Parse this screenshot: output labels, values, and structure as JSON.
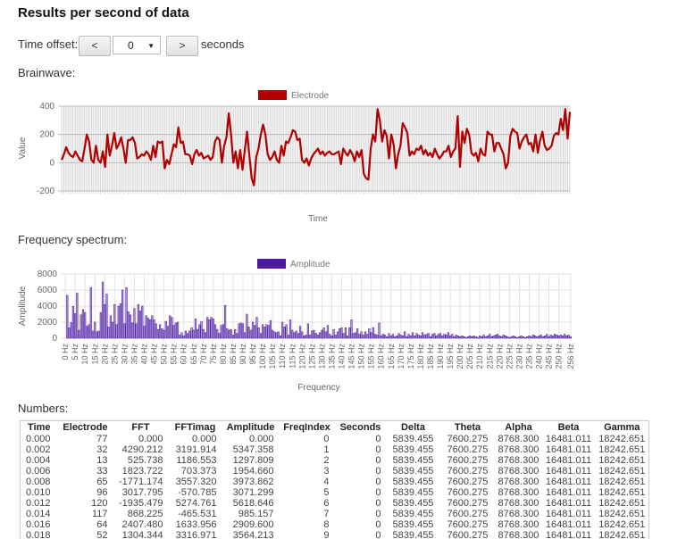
{
  "title": "Results per second of data",
  "controls": {
    "label": "Time offset:",
    "prev_label": "<",
    "offset_value": "0",
    "next_label": ">",
    "unit": "seconds"
  },
  "brainwave": {
    "heading": "Brainwave:",
    "chart_data": {
      "type": "line",
      "legend": "Electrode",
      "color": "#b00000",
      "xlabel": "Time",
      "ylabel": "Value",
      "ylim": [
        -200,
        400
      ],
      "yticks": [
        "400",
        "200",
        "0",
        "-200"
      ],
      "grid": true,
      "legend_position": "top",
      "values": [
        20,
        60,
        110,
        70,
        50,
        40,
        80,
        50,
        20,
        10,
        100,
        200,
        150,
        20,
        0,
        120,
        20,
        0,
        80,
        -30,
        200,
        50,
        120,
        210,
        100,
        130,
        180,
        100,
        0,
        160,
        160,
        180,
        140,
        30,
        40,
        60,
        50,
        80,
        60,
        20,
        120,
        40,
        150,
        140,
        150,
        -40,
        20,
        -10,
        60,
        130,
        110,
        250,
        140,
        150,
        60,
        60,
        50,
        -10,
        60,
        90,
        50,
        70,
        30,
        40,
        50,
        20,
        40,
        150,
        180,
        160,
        0,
        120,
        180,
        350,
        200,
        0,
        80,
        -40,
        90,
        -50,
        90,
        220,
        50,
        -110,
        -160,
        40,
        100,
        200,
        270,
        200,
        60,
        20,
        40,
        80,
        20,
        0,
        120,
        50,
        150,
        140,
        180,
        230,
        220,
        160,
        170,
        20,
        0,
        30,
        -20,
        30,
        60,
        80,
        100,
        60,
        80,
        50,
        70,
        80,
        60,
        60,
        70,
        80,
        -10,
        100,
        70,
        50,
        90,
        60,
        10,
        80,
        40,
        90,
        -80,
        -110,
        -120,
        100,
        200,
        150,
        380,
        300,
        150,
        230,
        190,
        30,
        200,
        130,
        -40,
        60,
        120,
        280,
        250,
        210,
        50,
        80,
        60,
        100,
        90,
        120,
        60,
        90,
        50,
        70,
        40,
        100,
        60,
        30,
        50,
        80,
        80,
        120,
        40,
        80,
        100,
        330,
        -30,
        220,
        140,
        240,
        200,
        70,
        50,
        70,
        10,
        100,
        60,
        50,
        220,
        200,
        200,
        80,
        140,
        140,
        100,
        60,
        -40,
        0,
        190,
        240,
        220,
        210,
        100,
        150,
        180,
        200,
        130,
        140,
        80,
        200,
        70,
        160,
        220,
        120,
        90,
        100,
        120,
        190,
        210,
        200,
        310,
        230,
        380,
        170,
        360
      ]
    }
  },
  "spectrum": {
    "heading": "Frequency spectrum:",
    "chart_data": {
      "type": "bar",
      "legend": "Amplitude",
      "color": "#4b1a9e",
      "xlabel": "Frequency",
      "ylabel": "Amplitude",
      "ylim": [
        0,
        8000
      ],
      "yticks": [
        "8000",
        "6000",
        "4000",
        "2000",
        "0"
      ],
      "grid": true,
      "legend_position": "top",
      "xticks": [
        "0 Hz",
        "5 Hz",
        "10 Hz",
        "15 Hz",
        "20 Hz",
        "25 Hz",
        "30 Hz",
        "35 Hz",
        "40 Hz",
        "45 Hz",
        "50 Hz",
        "55 Hz",
        "60 Hz",
        "65 Hz",
        "70 Hz",
        "75 Hz",
        "80 Hz",
        "85 Hz",
        "90 Hz",
        "95 Hz",
        "100 Hz",
        "105 Hz",
        "110 Hz",
        "115 Hz",
        "120 Hz",
        "125 Hz",
        "130 Hz",
        "135 Hz",
        "140 Hz",
        "145 Hz",
        "150 Hz",
        "155 Hz",
        "160 Hz",
        "165 Hz",
        "170 Hz",
        "175 Hz",
        "180 Hz",
        "185 Hz",
        "190 Hz",
        "195 Hz",
        "200 Hz",
        "205 Hz",
        "210 Hz",
        "215 Hz",
        "220 Hz",
        "225 Hz",
        "230 Hz",
        "235 Hz",
        "240 Hz",
        "245 Hz",
        "250 Hz",
        "256 Hz"
      ],
      "values": [
        0,
        5347,
        1298,
        1955,
        3974,
        3071,
        5619,
        985,
        2910,
        3564,
        3200,
        1500,
        1700,
        6300,
        900,
        2000,
        800,
        900,
        3200,
        7000,
        4200,
        5500,
        1400,
        2800,
        2000,
        4200,
        1700,
        4000,
        4300,
        6000,
        1800,
        6300,
        3300,
        2900,
        1900,
        3700,
        1800,
        4200,
        3400,
        4000,
        1500,
        2800,
        2500,
        2300,
        2800,
        2300,
        1800,
        1100,
        1700,
        1200,
        1000,
        2100,
        1500,
        2800,
        2600,
        1600,
        1900,
        2000,
        400,
        700,
        300,
        900,
        600,
        900,
        1300,
        1000,
        2400,
        1100,
        1700,
        2100,
        1100,
        700,
        2600,
        2300,
        2600,
        2400,
        1700,
        1100,
        600,
        1600,
        1700,
        4100,
        1200,
        1000,
        1100,
        400,
        1100,
        600,
        1800,
        1900,
        1800,
        700,
        3000,
        1400,
        1000,
        2000,
        1600,
        2600,
        1300,
        600,
        1700,
        1400,
        1700,
        1600,
        2200,
        1000,
        800,
        700,
        800,
        300,
        2000,
        1400,
        1700,
        400,
        2300,
        1000,
        700,
        900,
        600,
        1500,
        800,
        300,
        400,
        1800,
        400,
        900,
        1000,
        600,
        400,
        700,
        1000,
        1300,
        800,
        1600,
        500,
        300,
        1100,
        400,
        800,
        1200,
        1300,
        600,
        1300,
        300,
        1300,
        2300,
        600,
        700,
        1200,
        500,
        800,
        400,
        800,
        500,
        1200,
        700,
        1300,
        500,
        400,
        1900,
        300,
        500,
        400,
        200,
        600,
        300,
        500,
        200,
        300,
        600,
        400,
        300,
        800,
        200,
        500,
        300,
        700,
        300,
        600,
        400,
        300,
        700,
        400,
        500,
        600,
        200,
        500,
        600,
        300,
        500,
        600,
        300,
        500,
        400,
        700,
        300,
        500,
        200,
        400,
        300,
        200,
        300,
        200,
        100,
        200,
        300,
        200,
        300,
        200,
        100,
        300,
        200,
        400,
        200,
        300,
        500,
        200,
        300,
        400,
        500,
        300,
        200,
        400,
        300,
        200,
        100,
        200,
        300,
        200,
        100,
        200,
        300,
        200,
        100,
        200,
        300,
        200,
        400,
        300,
        200,
        300,
        400,
        200,
        300,
        500,
        200,
        400,
        300,
        500,
        400,
        300,
        400,
        300,
        500,
        300,
        400,
        200
      ]
    }
  },
  "numbers": {
    "heading": "Numbers:",
    "columns": [
      "Time",
      "Electrode",
      "FFT",
      "FFTimag",
      "Amplitude",
      "FreqIndex",
      "Seconds",
      "Delta",
      "Theta",
      "Alpha",
      "Beta",
      "Gamma"
    ],
    "rows": [
      [
        "0.000",
        "77",
        "0.000",
        "0.000",
        "0.000",
        "0",
        "0",
        "5839.455",
        "7600.275",
        "8768.300",
        "16481.011",
        "18242.651"
      ],
      [
        "0.002",
        "32",
        "4290.212",
        "3191.914",
        "5347.358",
        "1",
        "0",
        "5839.455",
        "7600.275",
        "8768.300",
        "16481.011",
        "18242.651"
      ],
      [
        "0.004",
        "13",
        "525.738",
        "1186.553",
        "1297.809",
        "2",
        "0",
        "5839.455",
        "7600.275",
        "8768.300",
        "16481.011",
        "18242.651"
      ],
      [
        "0.006",
        "33",
        "1823.722",
        "703.373",
        "1954.660",
        "3",
        "0",
        "5839.455",
        "7600.275",
        "8768.300",
        "16481.011",
        "18242.651"
      ],
      [
        "0.008",
        "65",
        "-1771.174",
        "3557.320",
        "3973.862",
        "4",
        "0",
        "5839.455",
        "7600.275",
        "8768.300",
        "16481.011",
        "18242.651"
      ],
      [
        "0.010",
        "96",
        "3017.795",
        "-570.785",
        "3071.299",
        "5",
        "0",
        "5839.455",
        "7600.275",
        "8768.300",
        "16481.011",
        "18242.651"
      ],
      [
        "0.012",
        "120",
        "-1935.479",
        "5274.761",
        "5618.646",
        "6",
        "0",
        "5839.455",
        "7600.275",
        "8768.300",
        "16481.011",
        "18242.651"
      ],
      [
        "0.014",
        "117",
        "868.225",
        "-465.531",
        "985.157",
        "7",
        "0",
        "5839.455",
        "7600.275",
        "8768.300",
        "16481.011",
        "18242.651"
      ],
      [
        "0.016",
        "64",
        "2407.480",
        "1633.956",
        "2909.600",
        "8",
        "0",
        "5839.455",
        "7600.275",
        "8768.300",
        "16481.011",
        "18242.651"
      ],
      [
        "0.018",
        "52",
        "1304.344",
        "3316.971",
        "3564.213",
        "9",
        "0",
        "5839.455",
        "7600.275",
        "8768.300",
        "16481.011",
        "18242.651"
      ]
    ]
  }
}
